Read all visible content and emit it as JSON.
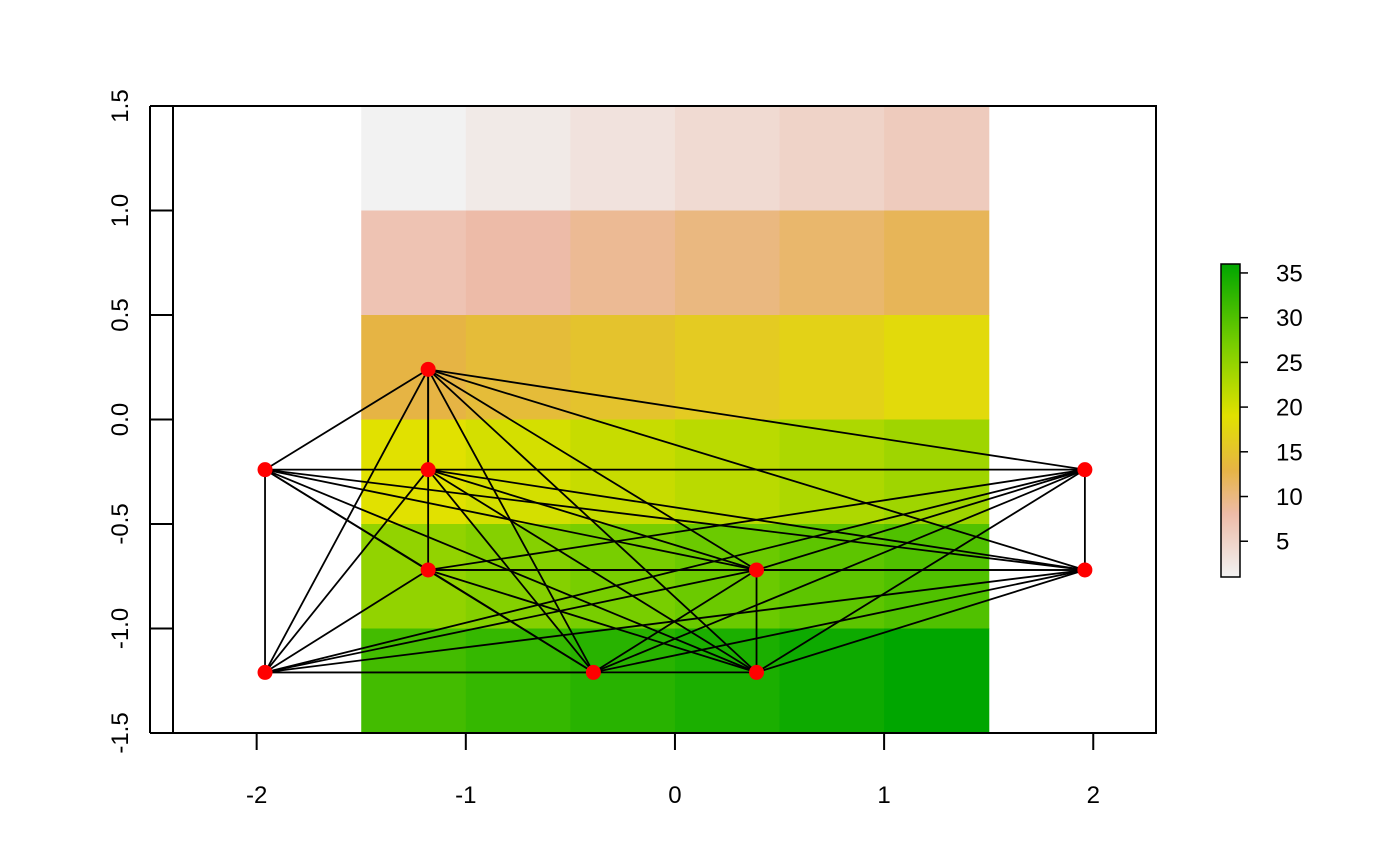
{
  "chart_data": {
    "type": "heatmap",
    "title": "",
    "xlabel": "",
    "ylabel": "",
    "xlim": [
      -2.4,
      2.3
    ],
    "ylim": [
      -1.5,
      1.5
    ],
    "x_ticks": [
      -2,
      -1,
      0,
      1,
      2
    ],
    "x_tick_labels": [
      "-2",
      "-1",
      "0",
      "1",
      "2"
    ],
    "y_ticks": [
      -1.5,
      -1.0,
      -0.5,
      0.0,
      0.5,
      1.0,
      1.5
    ],
    "y_tick_labels": [
      "-1.5",
      "-1.0",
      "-0.5",
      "0.0",
      "0.5",
      "1.0",
      "1.5"
    ],
    "raster": {
      "x_edges": [
        -1.5,
        -1.0,
        -0.5,
        0.0,
        0.5,
        1.0,
        1.5
      ],
      "y_edges": [
        -1.5,
        -1.0,
        -0.5,
        0.0,
        0.5,
        1.0,
        1.5
      ],
      "values_top_to_bottom": [
        [
          1,
          2,
          3,
          4,
          5,
          6
        ],
        [
          7,
          8,
          9,
          10,
          11,
          12
        ],
        [
          13,
          14,
          15,
          16,
          17,
          18
        ],
        [
          19,
          20,
          21,
          22,
          23,
          24
        ],
        [
          25,
          26,
          27,
          28,
          29,
          30
        ],
        [
          31,
          32,
          33,
          34,
          35,
          36
        ]
      ]
    },
    "color_scale": {
      "min": 1,
      "max": 36,
      "stops": [
        {
          "value": 1,
          "color": "#f2f2f2"
        },
        {
          "value": 8,
          "color": "#edbba8"
        },
        {
          "value": 13,
          "color": "#e6b444"
        },
        {
          "value": 19,
          "color": "#e1e100"
        },
        {
          "value": 27,
          "color": "#78ce00"
        },
        {
          "value": 36,
          "color": "#00a600"
        }
      ],
      "legend_ticks": [
        5,
        10,
        15,
        20,
        25,
        30,
        35
      ],
      "legend_tick_labels": [
        "5",
        "10",
        "15",
        "20",
        "25",
        "30",
        "35"
      ],
      "legend_position": "right"
    },
    "network": {
      "node_color": "#ff0000",
      "edge_color": "#000000",
      "nodes": [
        {
          "id": 1,
          "x": -1.96,
          "y": -0.24
        },
        {
          "id": 2,
          "x": -1.18,
          "y": 0.24
        },
        {
          "id": 3,
          "x": -1.18,
          "y": -0.24
        },
        {
          "id": 4,
          "x": -1.18,
          "y": -0.72
        },
        {
          "id": 5,
          "x": -1.96,
          "y": -1.21
        },
        {
          "id": 6,
          "x": -0.39,
          "y": -1.21
        },
        {
          "id": 7,
          "x": 0.39,
          "y": -0.72
        },
        {
          "id": 8,
          "x": 0.39,
          "y": -1.21
        },
        {
          "id": 9,
          "x": 1.96,
          "y": -0.24
        },
        {
          "id": 10,
          "x": 1.96,
          "y": -0.72
        }
      ],
      "edges": [
        [
          1,
          2
        ],
        [
          1,
          3
        ],
        [
          1,
          4
        ],
        [
          1,
          5
        ],
        [
          1,
          6
        ],
        [
          1,
          7
        ],
        [
          1,
          8
        ],
        [
          1,
          10
        ],
        [
          2,
          3
        ],
        [
          2,
          4
        ],
        [
          2,
          5
        ],
        [
          2,
          6
        ],
        [
          2,
          7
        ],
        [
          2,
          8
        ],
        [
          2,
          9
        ],
        [
          2,
          10
        ],
        [
          3,
          5
        ],
        [
          3,
          6
        ],
        [
          3,
          7
        ],
        [
          3,
          8
        ],
        [
          3,
          9
        ],
        [
          3,
          10
        ],
        [
          4,
          5
        ],
        [
          4,
          6
        ],
        [
          4,
          7
        ],
        [
          4,
          8
        ],
        [
          4,
          9
        ],
        [
          4,
          10
        ],
        [
          5,
          6
        ],
        [
          5,
          7
        ],
        [
          5,
          8
        ],
        [
          5,
          9
        ],
        [
          5,
          10
        ],
        [
          6,
          7
        ],
        [
          6,
          9
        ],
        [
          6,
          10
        ],
        [
          7,
          8
        ],
        [
          7,
          9
        ],
        [
          7,
          10
        ],
        [
          8,
          9
        ],
        [
          8,
          10
        ],
        [
          9,
          10
        ]
      ]
    }
  }
}
